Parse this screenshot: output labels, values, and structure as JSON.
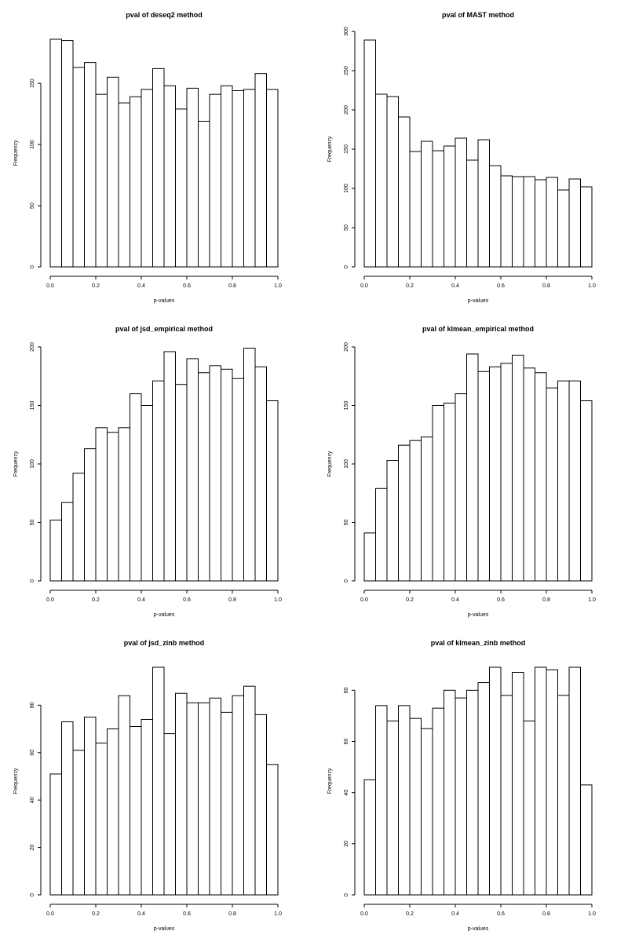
{
  "chart_data": [
    {
      "type": "bar",
      "title": "pval of deseq2 method",
      "xlabel": "p-values",
      "ylabel": "Frequency",
      "bin_edges": [
        0,
        0.05,
        0.1,
        0.15,
        0.2,
        0.25,
        0.3,
        0.35,
        0.4,
        0.45,
        0.5,
        0.55,
        0.6,
        0.65,
        0.7,
        0.75,
        0.8,
        0.85,
        0.9,
        0.95,
        1.0
      ],
      "values": [
        186,
        185,
        163,
        167,
        141,
        155,
        134,
        139,
        145,
        162,
        148,
        129,
        146,
        119,
        141,
        148,
        144,
        145,
        158,
        145
      ],
      "xticks": [
        "0.0",
        "0.2",
        "0.4",
        "0.6",
        "0.8",
        "1.0"
      ],
      "yticks": [
        "0",
        "50",
        "100",
        "150"
      ],
      "xlim": [
        0,
        1
      ],
      "ylim": [
        0,
        186
      ]
    },
    {
      "type": "bar",
      "title": "pval of MAST method",
      "xlabel": "p-values",
      "ylabel": "Frequency",
      "bin_edges": [
        0,
        0.05,
        0.1,
        0.15,
        0.2,
        0.25,
        0.3,
        0.35,
        0.4,
        0.45,
        0.5,
        0.55,
        0.6,
        0.65,
        0.7,
        0.75,
        0.8,
        0.85,
        0.9,
        0.95,
        1.0
      ],
      "values": [
        289,
        220,
        217,
        191,
        147,
        160,
        148,
        154,
        164,
        136,
        162,
        129,
        116,
        115,
        115,
        111,
        114,
        98,
        112,
        102
      ],
      "xticks": [
        "0.0",
        "0.2",
        "0.4",
        "0.6",
        "0.8",
        "1.0"
      ],
      "yticks": [
        "0",
        "50",
        "100",
        "150",
        "200",
        "250",
        "300"
      ],
      "xlim": [
        0,
        1
      ],
      "ylim": [
        0,
        300
      ]
    },
    {
      "type": "bar",
      "title": "pval of jsd_empirical method",
      "xlabel": "p-values",
      "ylabel": "Frequency",
      "bin_edges": [
        0,
        0.05,
        0.1,
        0.15,
        0.2,
        0.25,
        0.3,
        0.35,
        0.4,
        0.45,
        0.5,
        0.55,
        0.6,
        0.65,
        0.7,
        0.75,
        0.8,
        0.85,
        0.9,
        0.95,
        1.0
      ],
      "values": [
        52,
        67,
        92,
        113,
        131,
        127,
        131,
        160,
        150,
        171,
        196,
        168,
        190,
        178,
        184,
        181,
        173,
        199,
        183,
        154
      ],
      "xticks": [
        "0.0",
        "0.2",
        "0.4",
        "0.6",
        "0.8",
        "1.0"
      ],
      "yticks": [
        "0",
        "50",
        "100",
        "150",
        "200"
      ],
      "xlim": [
        0,
        1
      ],
      "ylim": [
        0,
        200
      ]
    },
    {
      "type": "bar",
      "title": "pval of klmean_empirical method",
      "xlabel": "p-values",
      "ylabel": "Frequency",
      "bin_edges": [
        0,
        0.05,
        0.1,
        0.15,
        0.2,
        0.25,
        0.3,
        0.35,
        0.4,
        0.45,
        0.5,
        0.55,
        0.6,
        0.65,
        0.7,
        0.75,
        0.8,
        0.85,
        0.9,
        0.95,
        1.0
      ],
      "values": [
        41,
        79,
        103,
        116,
        120,
        123,
        150,
        152,
        160,
        194,
        179,
        183,
        186,
        193,
        182,
        178,
        165,
        171,
        171,
        154
      ],
      "xticks": [
        "0.0",
        "0.2",
        "0.4",
        "0.6",
        "0.8",
        "1.0"
      ],
      "yticks": [
        "0",
        "50",
        "100",
        "150",
        "200"
      ],
      "xlim": [
        0,
        1
      ],
      "ylim": [
        0,
        200
      ]
    },
    {
      "type": "bar",
      "title": "pval of jsd_zinb method",
      "xlabel": "p-values",
      "ylabel": "Frequency",
      "bin_edges": [
        0,
        0.05,
        0.1,
        0.15,
        0.2,
        0.25,
        0.3,
        0.35,
        0.4,
        0.45,
        0.5,
        0.55,
        0.6,
        0.65,
        0.7,
        0.75,
        0.8,
        0.85,
        0.9,
        0.95,
        1.0
      ],
      "values": [
        51,
        73,
        61,
        75,
        64,
        70,
        84,
        71,
        74,
        96,
        68,
        85,
        81,
        81,
        83,
        77,
        84,
        88,
        76,
        55
      ],
      "xticks": [
        "0.0",
        "0.2",
        "0.4",
        "0.6",
        "0.8",
        "1.0"
      ],
      "yticks": [
        "0",
        "20",
        "40",
        "60",
        "80"
      ],
      "xlim": [
        0,
        1
      ],
      "ylim": [
        0,
        96
      ]
    },
    {
      "type": "bar",
      "title": "pval of klmean_zinb method",
      "xlabel": "p-values",
      "ylabel": "Frequency",
      "bin_edges": [
        0,
        0.05,
        0.1,
        0.15,
        0.2,
        0.25,
        0.3,
        0.35,
        0.4,
        0.45,
        0.5,
        0.55,
        0.6,
        0.65,
        0.7,
        0.75,
        0.8,
        0.85,
        0.9,
        0.95,
        1.0
      ],
      "values": [
        45,
        74,
        68,
        74,
        69,
        65,
        73,
        80,
        77,
        80,
        83,
        89,
        78,
        87,
        68,
        89,
        88,
        78,
        89,
        43
      ],
      "xticks": [
        "0.0",
        "0.2",
        "0.4",
        "0.6",
        "0.8",
        "1.0"
      ],
      "yticks": [
        "0",
        "20",
        "40",
        "60",
        "80"
      ],
      "xlim": [
        0,
        1
      ],
      "ylim": [
        0,
        89
      ]
    }
  ]
}
